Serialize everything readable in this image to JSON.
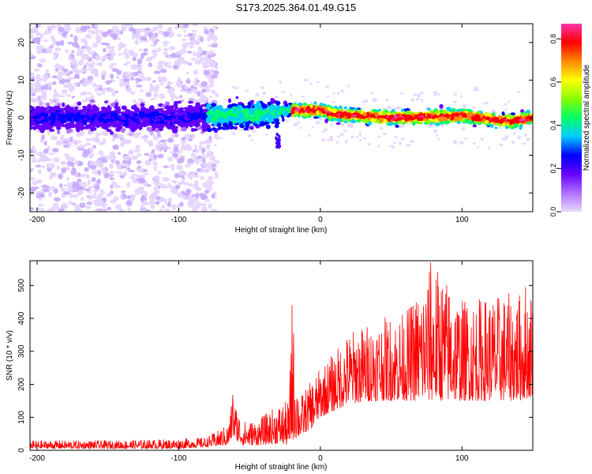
{
  "title": "S173.2025.364.01.49.G15",
  "chart_data": [
    {
      "type": "heatmap",
      "xlabel": "Height of straight line (km)",
      "ylabel": "Frequency (Hz)",
      "xlim": [
        -205,
        150
      ],
      "ylim": [
        -25,
        25
      ],
      "xticks": [
        -200,
        -100,
        0,
        100
      ],
      "xtick_labels": [
        "-200",
        "-100",
        "0",
        "100"
      ],
      "yticks": [
        -20,
        -10,
        0,
        10,
        20
      ],
      "ytick_labels": [
        "-20",
        "-10",
        "0",
        "10",
        "20"
      ],
      "grid": false,
      "colorbar": {
        "label": "Normalized spectral amplitude",
        "range": [
          0,
          0.87
        ],
        "ticks": [
          "0.0",
          "0.2",
          "0.4",
          "0.6",
          "0.8"
        ],
        "tick_values": [
          0,
          0.2,
          0.4,
          0.6,
          0.8
        ],
        "colors": [
          "#e8d8ff",
          "#b070ff",
          "#6600ff",
          "#0000ff",
          "#00ccff",
          "#00ff66",
          "#88ff00",
          "#ffff00",
          "#ff8800",
          "#ff0000",
          "#ff33aa"
        ]
      },
      "features": {
        "band_center_hz": [
          [
            -205,
            0
          ],
          [
            -100,
            0
          ],
          [
            -40,
            1
          ],
          [
            -20,
            2
          ],
          [
            0,
            2
          ],
          [
            10,
            1
          ],
          [
            50,
            0
          ],
          [
            100,
            0.5
          ],
          [
            135,
            -1
          ],
          [
            150,
            0
          ]
        ],
        "band_halfwidth_hz_noisy_region": 4,
        "band_halfwidth_hz_clean_region": 2,
        "noise_region_km": [
          -205,
          -78
        ],
        "noise_spread_hz": 25,
        "peak_amplitude_region_km": [
          -20,
          150
        ]
      }
    },
    {
      "type": "line",
      "xlabel": "Height of straight line (km)",
      "ylabel": "SNR (10 * v/v)",
      "xlim": [
        -205,
        150
      ],
      "ylim": [
        0,
        575
      ],
      "xticks": [
        -200,
        -100,
        0,
        100
      ],
      "xtick_labels": [
        "-200",
        "-100",
        "0",
        "100"
      ],
      "yticks": [
        0,
        100,
        200,
        300,
        400,
        500
      ],
      "ytick_labels": [
        "0",
        "100",
        "200",
        "300",
        "400",
        "500"
      ],
      "grid": false,
      "color": "#ff0000",
      "envelope": {
        "x": [
          -205,
          -150,
          -100,
          -80,
          -65,
          -62,
          -55,
          -45,
          -30,
          -22,
          -20,
          -15,
          -5,
          0,
          10,
          20,
          40,
          60,
          80,
          100,
          120,
          140,
          150
        ],
        "low": [
          5,
          5,
          5,
          10,
          15,
          40,
          15,
          15,
          20,
          15,
          30,
          40,
          70,
          100,
          120,
          140,
          150,
          150,
          150,
          150,
          150,
          150,
          160
        ],
        "high": [
          30,
          30,
          35,
          40,
          80,
          165,
          90,
          90,
          140,
          150,
          440,
          160,
          220,
          250,
          300,
          360,
          400,
          420,
          570,
          460,
          470,
          480,
          500
        ]
      },
      "notable_peaks": [
        {
          "x": -62,
          "y": 168
        },
        {
          "x": -20,
          "y": 440
        },
        {
          "x": 78,
          "y": 570
        },
        {
          "x": 145,
          "y": 495
        }
      ]
    }
  ]
}
